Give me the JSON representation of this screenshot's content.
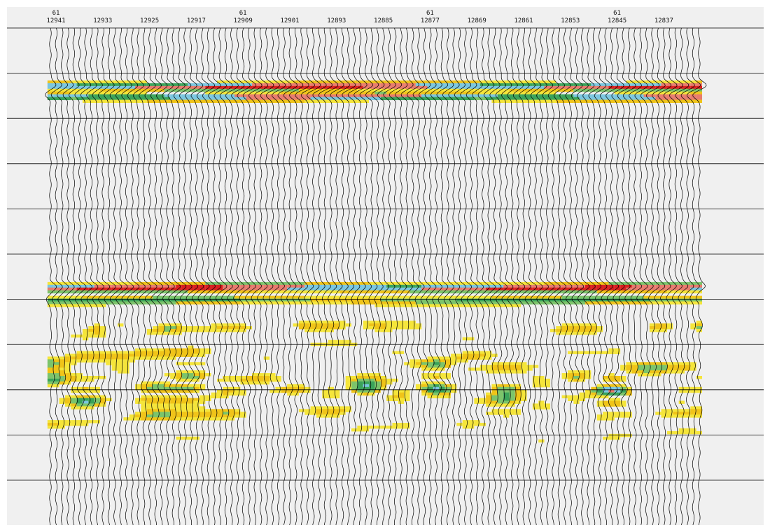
{
  "chart_data": {
    "type": "heatmap",
    "subtype": "seismic-wiggle-trace-section",
    "trace_header": {
      "row1": [
        "61",
        "",
        "",
        "",
        "61",
        "",
        "",
        "",
        "61",
        "",
        "",
        "",
        "61",
        ""
      ],
      "row2": [
        "12941",
        "12933",
        "12925",
        "12917",
        "12909",
        "12901",
        "12893",
        "12885",
        "12877",
        "12869",
        "12861",
        "12853",
        "12845",
        "12837"
      ]
    },
    "trace_numbers": {
      "first": 12941,
      "last": 12830,
      "step": -1
    },
    "label_every_n_traces": 8,
    "timing_lines": 11,
    "horizons": [
      {
        "name": "",
        "relative_time": 0.115,
        "strength": 1.0,
        "polarity": 1
      },
      {
        "name": "",
        "relative_time": 0.135,
        "strength": 0.9,
        "polarity": -1
      },
      {
        "name": "",
        "relative_time": 0.52,
        "strength": 1.0,
        "polarity": 1
      },
      {
        "name": "",
        "relative_time": 0.545,
        "strength": 0.6,
        "polarity": -1
      }
    ],
    "colorbar": {
      "scale": [
        "#ffffff",
        "#f5e53a",
        "#f0c419",
        "#7cc46b",
        "#3aa35a",
        "#7ac6e0",
        "#e87b6e",
        "#d92020"
      ],
      "meaning": "amplitude, low to high"
    },
    "grid": true
  }
}
